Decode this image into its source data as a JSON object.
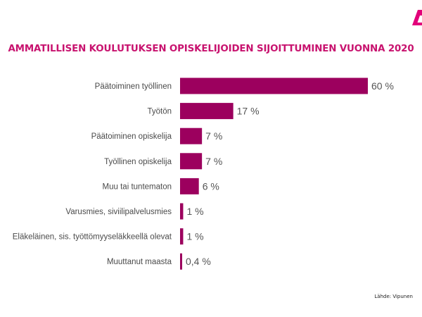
{
  "colors": {
    "bar": "#9C005E",
    "title": "#C8136F",
    "logo": "#E2007A",
    "category_label": "#4a4a4a",
    "value_label": "#555555"
  },
  "logo": {
    "icon": "brand-logo-a",
    "text": "A"
  },
  "source": "Lähde: Vipunen",
  "chart_data": {
    "type": "bar",
    "orientation": "horizontal",
    "title": "AMMATILLISEN KOULUTUKSEN OPISKELIJOIDEN SIJOITTUMINEN VUONNA 2020",
    "categories": [
      "Päätoiminen työllinen",
      "Työtön",
      "Päätoiminen opiskelija",
      "Työllinen opiskelija",
      "Muu tai tuntematon",
      "Varusmies, siviilipalvelusmies",
      "Eläkeläinen, sis. työttömyyseläkkeellä olevat",
      "Muuttanut maasta"
    ],
    "values": [
      60,
      17,
      7,
      7,
      6,
      1,
      1,
      0.4
    ],
    "value_labels": [
      "60 %",
      "17 %",
      "7 %",
      "7 %",
      "6 %",
      "1 %",
      "1 %",
      "0,4 %"
    ],
    "xlim": [
      0,
      60
    ],
    "unit": "%",
    "grid": false,
    "legend": "none"
  }
}
